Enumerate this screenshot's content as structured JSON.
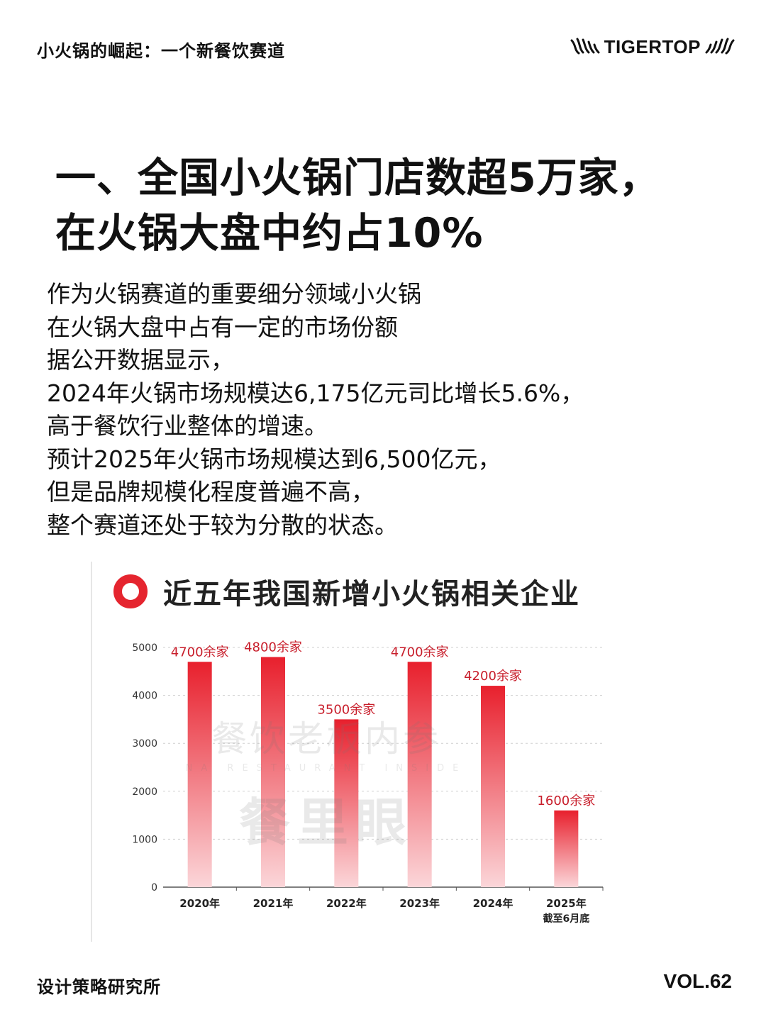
{
  "header": {
    "series_title": "小火锅的崛起：一个新餐饮赛道",
    "brand": "TIGERTOP"
  },
  "headline": {
    "line1": "一、全国小火锅门店数超5万家，",
    "line2": "在火锅大盘中约占10%"
  },
  "body": {
    "lines": [
      "作为火锅赛道的重要细分领域小火锅",
      "在火锅大盘中占有一定的市场份额",
      "据公开数据显示，",
      "2024年火锅市场规模达6,175亿元司比增长5.6%，",
      "高于餐饮行业整体的增速。",
      "预计2025年火锅市场规模达到6,500亿元，",
      "但是品牌规模化程度普遍不高，",
      "整个赛道还处于较为分散的状态。"
    ]
  },
  "watermark": {
    "line1": "餐饮老板内参",
    "line2": "NA RESTAURANT INSIDE",
    "line3": "餐里眼"
  },
  "chart_data": {
    "type": "bar",
    "title": "近五年我国新增小火锅相关企业",
    "categories": [
      "2020年",
      "2021年",
      "2022年",
      "2023年",
      "2024年",
      "2025年"
    ],
    "category_sublabels": [
      "",
      "",
      "",
      "",
      "",
      "截至6月底"
    ],
    "values": [
      4700,
      4800,
      3500,
      4700,
      4200,
      1600
    ],
    "data_labels": [
      "4700余家",
      "4800余家",
      "3500余家",
      "4700余家",
      "4200余家",
      "1600余家"
    ],
    "yticks": [
      0,
      1000,
      2000,
      3000,
      4000,
      5000
    ],
    "ylim": [
      0,
      5000
    ],
    "xlabel": "",
    "ylabel": "",
    "grid": true,
    "legend": "none",
    "colors": {
      "bar_top": "#e8202d",
      "bar_bottom": "#fbd6d9",
      "label": "#c81e2b",
      "ring": "#e5252f"
    }
  },
  "footer": {
    "left": "设计策略研究所",
    "right": "VOL.62"
  }
}
